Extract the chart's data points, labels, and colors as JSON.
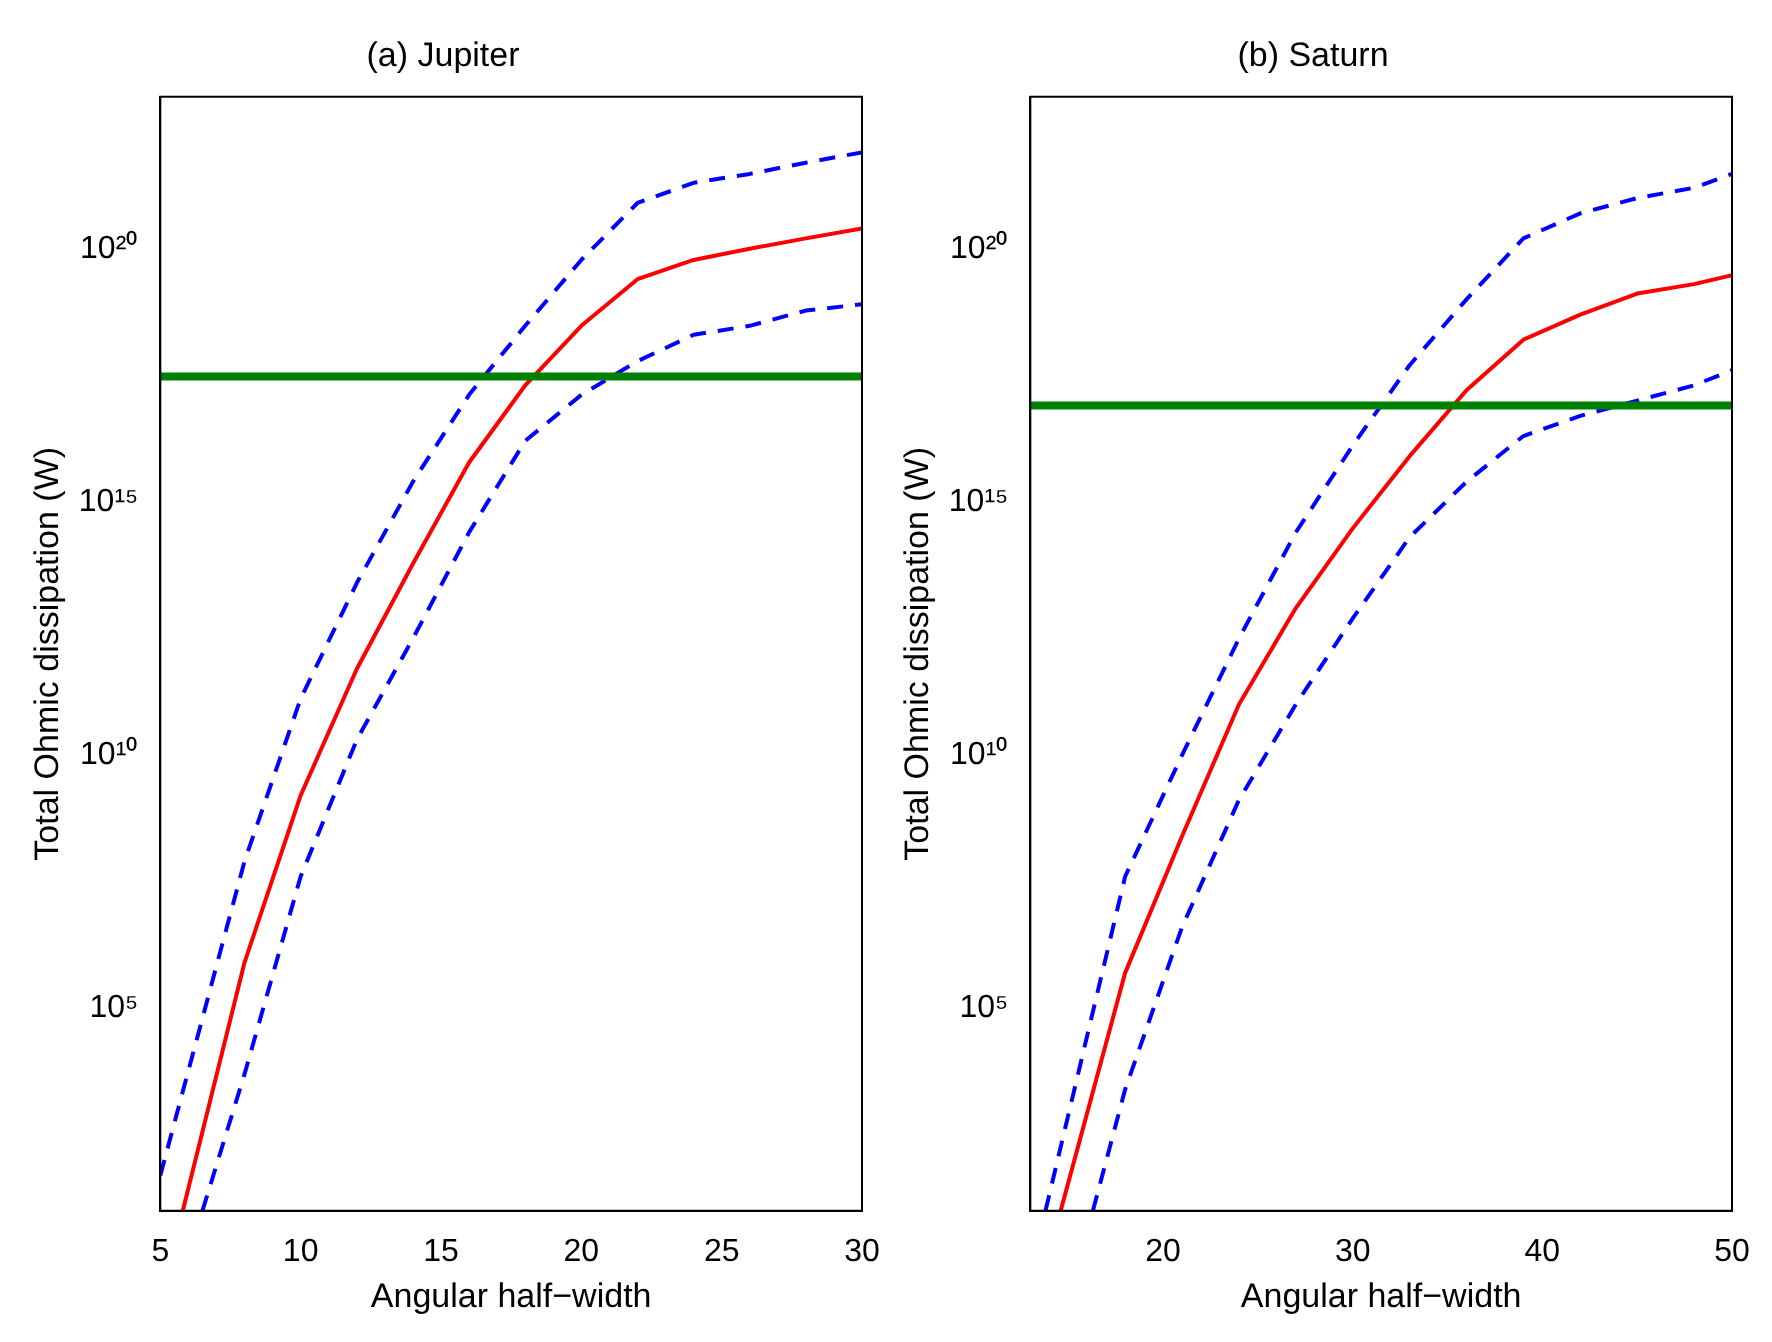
{
  "chart_data": [
    {
      "type": "line",
      "title": "(a) Jupiter",
      "xlabel": "Angular half−width",
      "ylabel": "Total Ohmic dissipation (W)",
      "log": "y",
      "grid": false,
      "legend": false,
      "marker": "none",
      "xlim": [
        5,
        30
      ],
      "xticks": [
        5,
        10,
        15,
        20,
        25,
        30
      ],
      "ylim": [
        10,
        1e+23
      ],
      "yticks": [
        {
          "value": 100000.0,
          "label": "10⁵"
        },
        {
          "value": 10000000000.0,
          "label": "10¹⁰"
        },
        {
          "value": 1000000000000000.0,
          "label": "10¹⁵"
        },
        {
          "value": 1e+20,
          "label": "10²⁰"
        }
      ],
      "series": [
        {
          "color": "#ff0000",
          "line_style": "solid",
          "x": [
            5.8,
            8,
            10,
            12,
            14,
            16,
            18,
            20,
            22,
            24,
            26,
            28,
            30
          ],
          "values": [
            10,
            800000.0,
            1600000000.0,
            500000000000.0,
            60000000000000.0,
            6000000000000000.0,
            2e+17,
            3e+18,
            2.5e+19,
            6e+19,
            1e+20,
            1.6e+20,
            2.5e+20
          ]
        },
        {
          "color": "#0000ff",
          "line_style": "dashed",
          "x": [
            5,
            8,
            10,
            12,
            14,
            16,
            18,
            20,
            22,
            24,
            26,
            28,
            30
          ],
          "values": [
            50,
            80000000.0,
            130000000000.0,
            25000000000000.0,
            2500000000000000.0,
            1.3e+17,
            3e+18,
            6e+19,
            8e+20,
            2e+21,
            3e+21,
            5e+21,
            8e+21
          ]
        },
        {
          "color": "#0000ff",
          "line_style": "dashed",
          "x": [
            6.5,
            8,
            10,
            12,
            14,
            16,
            18,
            20,
            22,
            24,
            26,
            28,
            30
          ],
          "values": [
            10,
            5000.0,
            40000000.0,
            20000000000.0,
            2000000000000.0,
            250000000000000.0,
            1.6e+16,
            1.3e+17,
            6e+17,
            2e+18,
            3e+18,
            6e+18,
            8e+18
          ]
        }
      ],
      "ref_lines": [
        {
          "axis": "y",
          "value": 3e+17,
          "color": "#008000"
        }
      ]
    },
    {
      "type": "line",
      "title": "(b) Saturn",
      "xlabel": "Angular half−width",
      "ylabel": "Total Ohmic dissipation (W)",
      "log": "y",
      "grid": false,
      "legend": false,
      "marker": "none",
      "xlim": [
        13,
        50
      ],
      "xticks": [
        20,
        30,
        40,
        50
      ],
      "ylim": [
        10,
        1e+23
      ],
      "yticks": [
        {
          "value": 100000.0,
          "label": "10⁵"
        },
        {
          "value": 10000000000.0,
          "label": "10¹⁰"
        },
        {
          "value": 1000000000000000.0,
          "label": "10¹⁵"
        },
        {
          "value": 1e+20,
          "label": "10²⁰"
        }
      ],
      "series": [
        {
          "color": "#ff0000",
          "line_style": "solid",
          "x": [
            14.6,
            18,
            21,
            24,
            27,
            30,
            33,
            36,
            39,
            42,
            45,
            48,
            50
          ],
          "values": [
            10,
            500000.0,
            250000000.0,
            100000000000.0,
            8000000000000.0,
            300000000000000.0,
            8000000000000000.0,
            1.6e+17,
            1.6e+18,
            5e+18,
            1.3e+19,
            2e+19,
            3e+19
          ]
        },
        {
          "color": "#0000ff",
          "line_style": "dashed",
          "x": [
            13.8,
            18,
            21,
            24,
            27,
            30,
            33,
            36,
            39,
            42,
            45,
            48,
            50
          ],
          "values": [
            10,
            40000000.0,
            10000000000.0,
            2000000000000.0,
            250000000000000.0,
            1.3e+16,
            5e+17,
            1e+19,
            1.6e+20,
            5e+20,
            1e+21,
            1.6e+21,
            3e+21
          ]
        },
        {
          "color": "#0000ff",
          "line_style": "dashed",
          "x": [
            16.3,
            18,
            21,
            24,
            27,
            30,
            33,
            36,
            39,
            42,
            45,
            48,
            50
          ],
          "values": [
            10,
            2500.0,
            4000000.0,
            1300000000.0,
            100000000000.0,
            5000000000000.0,
            200000000000000.0,
            2500000000000000.0,
            2e+16,
            5e+16,
            1e+17,
            2e+17,
            4e+17
          ]
        }
      ],
      "ref_lines": [
        {
          "axis": "y",
          "value": 8e+16,
          "color": "#008000"
        }
      ]
    }
  ]
}
